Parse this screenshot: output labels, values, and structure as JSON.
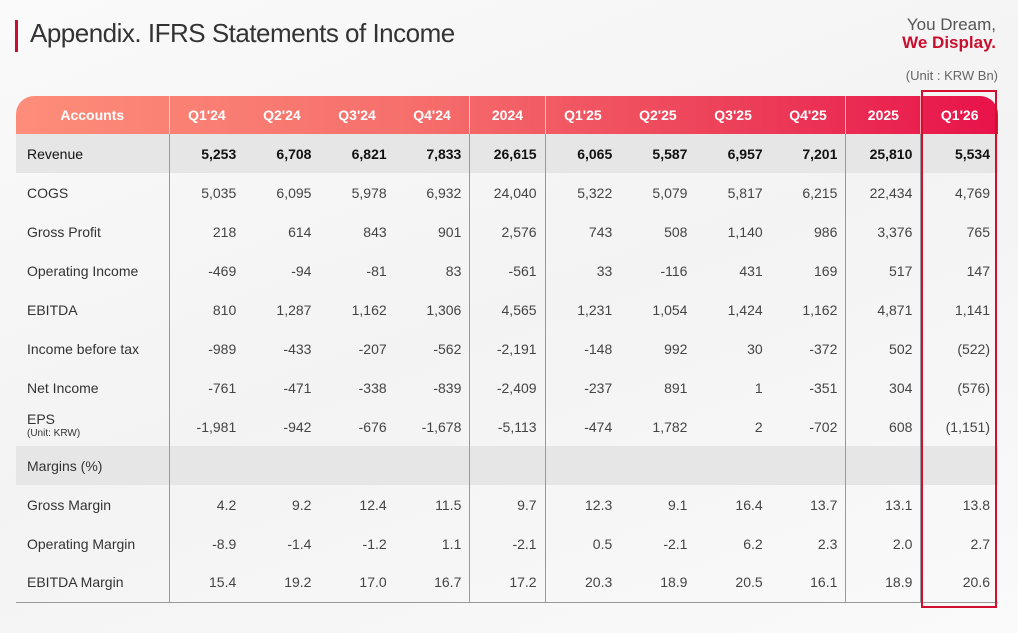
{
  "title": "Appendix. IFRS Statements of Income",
  "logo": {
    "line1": "You Dream,",
    "line2": "We Display."
  },
  "unit": "(Unit : KRW Bn)",
  "columns": [
    "Accounts",
    "Q1'24",
    "Q2'24",
    "Q3'24",
    "Q4'24",
    "2024",
    "Q1'25",
    "Q2'25",
    "Q3'25",
    "Q4'25",
    "2025",
    "Q1'26"
  ],
  "rows": [
    {
      "label": "Revenue",
      "values": [
        "5,253",
        "6,708",
        "6,821",
        "7,833",
        "26,615",
        "6,065",
        "5,587",
        "6,957",
        "7,201",
        "25,810",
        "5,534"
      ]
    },
    {
      "label": "COGS",
      "values": [
        "5,035",
        "6,095",
        "5,978",
        "6,932",
        "24,040",
        "5,322",
        "5,079",
        "5,817",
        "6,215",
        "22,434",
        "4,769"
      ]
    },
    {
      "label": "Gross Profit",
      "values": [
        "218",
        "614",
        "843",
        "901",
        "2,576",
        "743",
        "508",
        "1,140",
        "986",
        "3,376",
        "765"
      ]
    },
    {
      "label": "Operating Income",
      "values": [
        "-469",
        "-94",
        "-81",
        "83",
        "-561",
        "33",
        "-116",
        "431",
        "169",
        "517",
        "147"
      ]
    },
    {
      "label": "EBITDA",
      "values": [
        "810",
        "1,287",
        "1,162",
        "1,306",
        "4,565",
        "1,231",
        "1,054",
        "1,424",
        "1,162",
        "4,871",
        "1,141"
      ]
    },
    {
      "label": "Income before tax",
      "values": [
        "-989",
        "-433",
        "-207",
        "-562",
        "-2,191",
        "-148",
        "992",
        "30",
        "-372",
        "502",
        "(522)"
      ]
    },
    {
      "label": "Net Income",
      "values": [
        "-761",
        "-471",
        "-338",
        "-839",
        "-2,409",
        "-237",
        "891",
        "1",
        "-351",
        "304",
        "(576)"
      ]
    },
    {
      "label": "EPS",
      "sublabel": "(Unit: KRW)",
      "values": [
        "-1,981",
        "-942",
        "-676",
        "-1,678",
        "-5,113",
        "-474",
        "1,782",
        "2",
        "-702",
        "608",
        "(1,151)"
      ]
    },
    {
      "label": "Margins (%)",
      "values": []
    },
    {
      "label": "Gross Margin",
      "values": [
        "4.2",
        "9.2",
        "12.4",
        "11.5",
        "9.7",
        "12.3",
        "9.1",
        "16.4",
        "13.7",
        "13.1",
        "13.8"
      ]
    },
    {
      "label": "Operating Margin",
      "values": [
        "-8.9",
        "-1.4",
        "-1.2",
        "1.1",
        "-2.1",
        "0.5",
        "-2.1",
        "6.2",
        "2.3",
        "2.0",
        "2.7"
      ]
    },
    {
      "label": "EBITDA Margin",
      "values": [
        "15.4",
        "19.2",
        "17.0",
        "16.7",
        "17.2",
        "20.3",
        "18.9",
        "20.5",
        "16.1",
        "18.9",
        "20.6"
      ]
    }
  ]
}
